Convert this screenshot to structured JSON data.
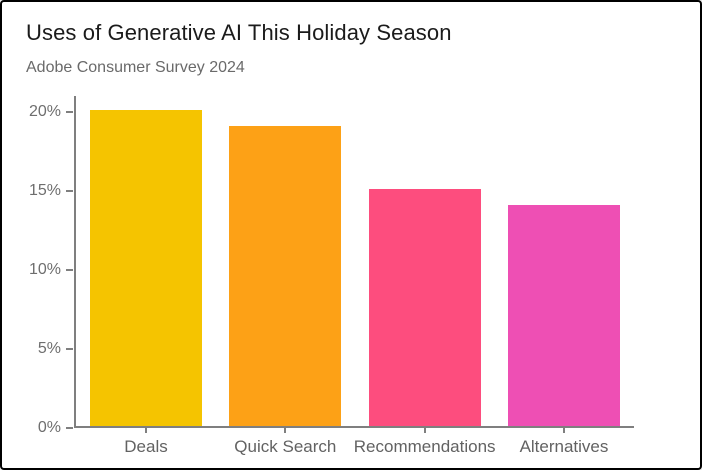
{
  "header": {
    "title": "Uses of Generative AI This Holiday Season",
    "subtitle": "Adobe Consumer Survey 2024"
  },
  "chart_data": {
    "type": "bar",
    "title": "Uses of Generative AI This Holiday Season",
    "subtitle": "Adobe Consumer Survey 2024",
    "categories": [
      "Deals",
      "Quick Search",
      "Recommendations",
      "Alternatives"
    ],
    "values": [
      20,
      19,
      15,
      14
    ],
    "value_unit": "%",
    "bar_colors": [
      "#F5C400",
      "#FDA116",
      "#FD4D7E",
      "#EE4FB4"
    ],
    "xlabel": "",
    "ylabel": "",
    "ylim": [
      0,
      21
    ],
    "y_ticks_values": [
      0,
      5,
      10,
      15,
      20
    ],
    "y_tick_labels": [
      "0%",
      "5%",
      "10%",
      "15%",
      "20%"
    ],
    "grid": false,
    "legend": false,
    "axis_color": "#7f7f7f",
    "tick_label_color": "#6e6e6e"
  }
}
